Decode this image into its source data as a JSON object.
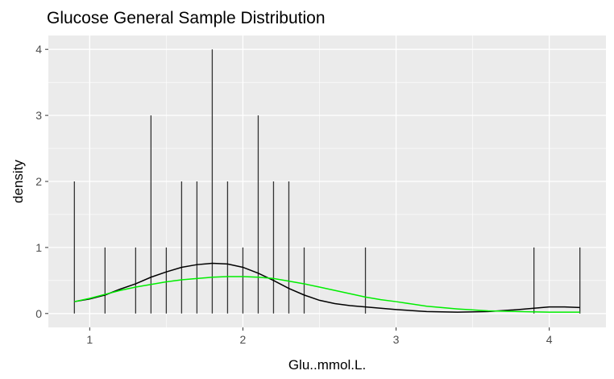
{
  "chart_data": {
    "type": "bar",
    "title": "Glucose General Sample Distribution",
    "xlabel": "Glu..mmol.L.",
    "ylabel": "density",
    "xlim": [
      0.73,
      4.37
    ],
    "ylim": [
      -0.21,
      4.21
    ],
    "x_ticks": [
      1,
      2,
      3,
      4
    ],
    "y_ticks": [
      0,
      1,
      2,
      3,
      4
    ],
    "grid": true,
    "bars": {
      "x": [
        0.9,
        1.1,
        1.3,
        1.4,
        1.5,
        1.6,
        1.7,
        1.8,
        1.9,
        2.0,
        2.1,
        2.2,
        2.3,
        2.4,
        2.8,
        3.9,
        4.2
      ],
      "values": [
        2,
        1,
        1,
        3,
        1,
        2,
        2,
        4,
        2,
        1,
        3,
        2,
        2,
        1,
        1,
        1,
        1
      ]
    },
    "series": [
      {
        "color": "#000000",
        "x": [
          0.9,
          1.0,
          1.1,
          1.2,
          1.3,
          1.4,
          1.5,
          1.6,
          1.7,
          1.8,
          1.9,
          2.0,
          2.1,
          2.2,
          2.3,
          2.4,
          2.5,
          2.6,
          2.7,
          2.8,
          3.0,
          3.2,
          3.4,
          3.6,
          3.8,
          3.9,
          4.0,
          4.1,
          4.2
        ],
        "values": [
          0.18,
          0.22,
          0.28,
          0.37,
          0.45,
          0.55,
          0.63,
          0.7,
          0.74,
          0.76,
          0.75,
          0.7,
          0.61,
          0.5,
          0.38,
          0.28,
          0.2,
          0.15,
          0.12,
          0.1,
          0.06,
          0.03,
          0.02,
          0.03,
          0.06,
          0.08,
          0.1,
          0.1,
          0.09
        ]
      },
      {
        "color": "#00ee00",
        "x": [
          0.9,
          1.0,
          1.1,
          1.2,
          1.3,
          1.4,
          1.5,
          1.6,
          1.7,
          1.8,
          1.9,
          2.0,
          2.1,
          2.2,
          2.3,
          2.4,
          2.5,
          2.6,
          2.7,
          2.8,
          2.9,
          3.0,
          3.2,
          3.4,
          3.6,
          3.8,
          4.0,
          4.2
        ],
        "values": [
          0.18,
          0.23,
          0.29,
          0.35,
          0.4,
          0.44,
          0.48,
          0.51,
          0.53,
          0.55,
          0.56,
          0.56,
          0.55,
          0.53,
          0.49,
          0.45,
          0.4,
          0.35,
          0.3,
          0.25,
          0.21,
          0.18,
          0.11,
          0.07,
          0.04,
          0.03,
          0.02,
          0.02
        ]
      }
    ],
    "colors": {
      "panel_bg": "#ebebeb",
      "grid_major": "#ffffff",
      "bar_stroke": "#333333"
    }
  }
}
